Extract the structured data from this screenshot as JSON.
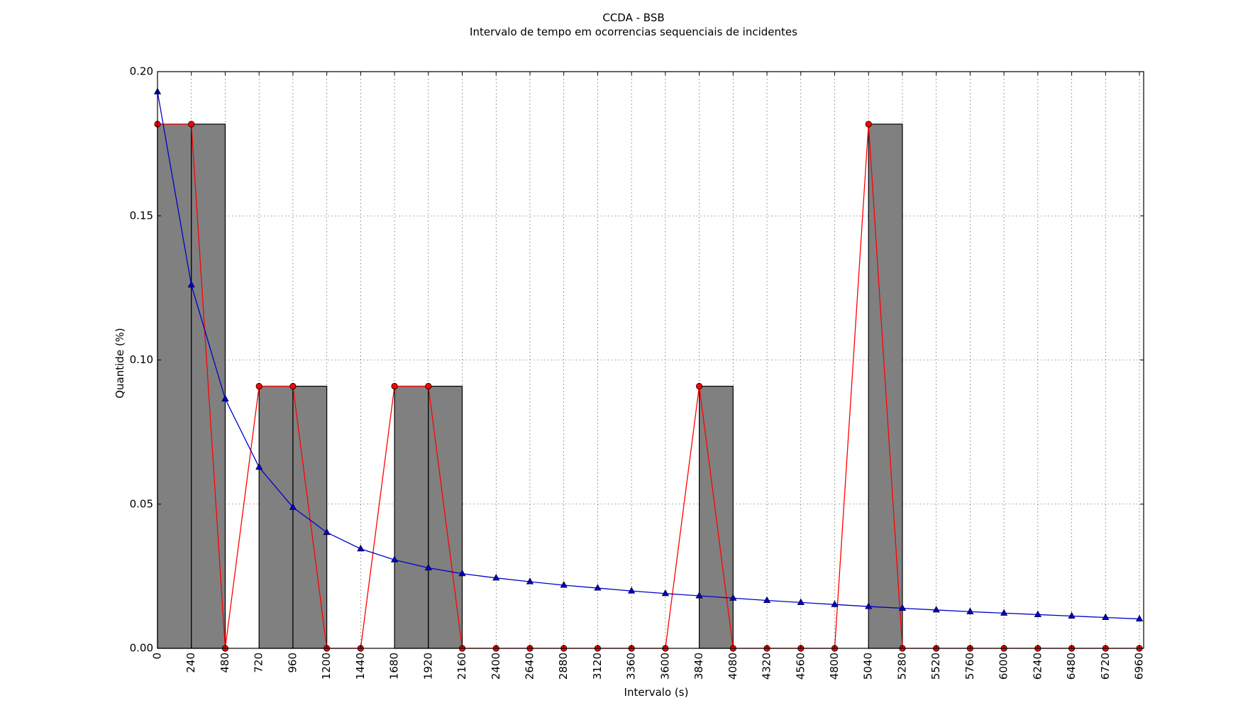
{
  "chart_data": {
    "type": "bar",
    "title": "CCDA - BSB",
    "subtitle": "Intervalo de tempo em ocorrencias sequenciais de incidentes",
    "xlabel": "Intervalo (s)",
    "ylabel": "Quantide (%)",
    "xlim": [
      0,
      6990
    ],
    "ylim": [
      0,
      0.2
    ],
    "grid": true,
    "x_ticks": [
      0,
      240,
      480,
      720,
      960,
      1200,
      1440,
      1680,
      1920,
      2160,
      2400,
      2640,
      2880,
      3120,
      3360,
      3600,
      3840,
      4080,
      4320,
      4560,
      4800,
      5040,
      5280,
      5520,
      5760,
      6000,
      6240,
      6480,
      6720,
      6960
    ],
    "y_ticks": [
      "0.00",
      "0.05",
      "0.10",
      "0.15",
      "0.20"
    ],
    "bin_width": 240,
    "colors": {
      "bars": "#808080",
      "bar_edge": "#000000",
      "empirical": "#ff0000",
      "fitted": "#0000cc"
    },
    "series": [
      {
        "name": "histogram",
        "kind": "bar",
        "x": [
          0,
          240,
          720,
          960,
          1680,
          1920,
          3840,
          5040
        ],
        "values": [
          0.1818,
          0.1818,
          0.0909,
          0.0909,
          0.0909,
          0.0909,
          0.0909,
          0.1818
        ]
      },
      {
        "name": "empirical",
        "kind": "line",
        "marker": "circle",
        "x": [
          0,
          240,
          480,
          720,
          960,
          1200,
          1440,
          1680,
          1920,
          2160,
          2400,
          2640,
          2880,
          3120,
          3360,
          3600,
          3840,
          4080,
          4320,
          4560,
          4800,
          5040,
          5280,
          5520,
          5760,
          6000,
          6240,
          6480,
          6720,
          6960
        ],
        "values": [
          0.1818,
          0.1818,
          0,
          0.0909,
          0.0909,
          0,
          0,
          0.0909,
          0.0909,
          0,
          0,
          0,
          0,
          0,
          0,
          0,
          0.0909,
          0,
          0,
          0,
          0,
          0.1818,
          0,
          0,
          0,
          0,
          0,
          0,
          0,
          0
        ]
      },
      {
        "name": "fitted",
        "kind": "line",
        "marker": "triangle",
        "x": [
          0,
          240,
          480,
          720,
          960,
          1200,
          1440,
          1680,
          1920,
          2160,
          2400,
          2640,
          2880,
          3120,
          3360,
          3600,
          3840,
          4080,
          4320,
          4560,
          4800,
          5040,
          5280,
          5520,
          5760,
          6000,
          6240,
          6480,
          6720,
          6960
        ],
        "values": [
          0.193,
          0.126,
          0.0865,
          0.0628,
          0.0489,
          0.0402,
          0.0345,
          0.0307,
          0.0279,
          0.0259,
          0.0244,
          0.0231,
          0.0219,
          0.0209,
          0.0199,
          0.019,
          0.0182,
          0.0174,
          0.0166,
          0.0159,
          0.0152,
          0.0145,
          0.0139,
          0.0133,
          0.0127,
          0.0122,
          0.0117,
          0.0112,
          0.0107,
          0.0102
        ]
      }
    ]
  }
}
